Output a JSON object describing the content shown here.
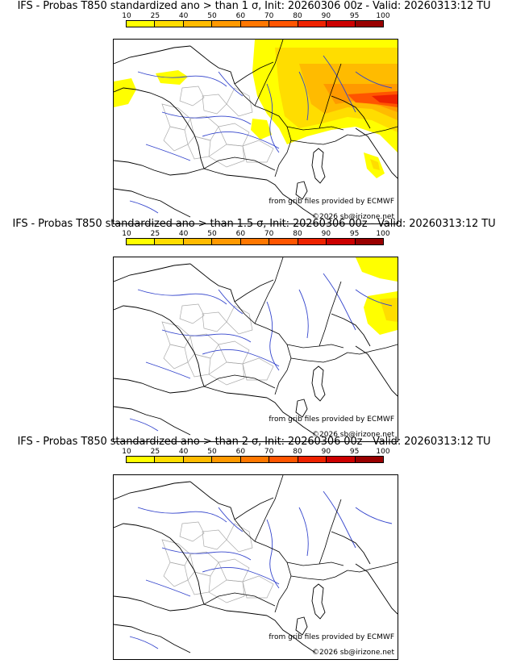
{
  "panels": [
    {
      "title": "IFS - Probas T850  standardized ano > than 1 σ, Init: 20260306 00z - Valid: 20260313:12 TU",
      "sigma": "1",
      "coverage": "wide"
    },
    {
      "title": "IFS - Probas T850  standardized ano > than 1.5 σ, Init: 20260306 00z - Valid: 20260313:12 TU",
      "sigma": "1.5",
      "coverage": "small"
    },
    {
      "title": "IFS - Probas T850  standardized ano > than 2 σ, Init: 20260306 00z - Valid: 20260313:12 TU",
      "sigma": "2",
      "coverage": "none"
    }
  ],
  "colorbar": {
    "labels": [
      "10",
      "25",
      "40",
      "50",
      "60",
      "70",
      "80",
      "90",
      "95",
      "100"
    ],
    "colors": [
      "#ffff00",
      "#ffdd00",
      "#ffbb00",
      "#ff9900",
      "#ff7700",
      "#ff5500",
      "#ee2200",
      "#cc0000",
      "#990000",
      "#660000"
    ]
  },
  "credits": {
    "source": "from grib files provided by ECMWF",
    "copyright": "©2026 sb@irizone.net"
  },
  "map_colors": {
    "rivers": "#3344cc",
    "borders": "#000000",
    "regions": "#aaaaaa"
  }
}
